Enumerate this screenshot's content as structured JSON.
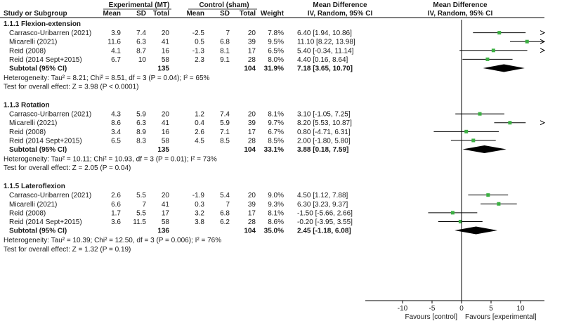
{
  "header": {
    "experimental_group": "Experimental (MT)",
    "control_group": "Control (sham)",
    "md_title": "Mean Difference",
    "md_method": "IV, Random, 95% CI",
    "md_title_right": "Mean Difference",
    "md_method_right": "IV, Random, 95% CI",
    "study_col": "Study or Subgroup",
    "mean": "Mean",
    "sd": "SD",
    "total": "Total",
    "mean2": "Mean",
    "sd2": "SD",
    "total2": "Total",
    "weight": "Weight"
  },
  "chart_data": {
    "type": "forest",
    "xlim": [
      -10,
      10
    ],
    "ticks": [
      -10,
      -5,
      0,
      5,
      10
    ],
    "favours_left": "Favours [control]",
    "favours_right": "Favours [experimental]",
    "marker_color": "#3cb043",
    "diamond_color": "#000000",
    "subgroups": [
      {
        "title": "1.1.1 Flexion-extension",
        "studies": [
          {
            "name": "Carrasco-Uribarren (2021)",
            "exp_mean": "3.9",
            "exp_sd": "7.4",
            "exp_total": "20",
            "ctl_mean": "-2.5",
            "ctl_sd": "7",
            "ctl_total": "20",
            "weight": "7.8%",
            "md_text": "6.40 [1.94, 10.86]",
            "md": 6.4,
            "lo": 1.94,
            "hi": 10.86
          },
          {
            "name": "Micarelli (2021)",
            "exp_mean": "11.6",
            "exp_sd": "6.3",
            "exp_total": "41",
            "ctl_mean": "0.5",
            "ctl_sd": "6.8",
            "ctl_total": "39",
            "weight": "9.5%",
            "md_text": "11.10 [8.22, 13.98]",
            "md": 11.1,
            "lo": 8.22,
            "hi": 13.98
          },
          {
            "name": "Reid (2008)",
            "exp_mean": "4.1",
            "exp_sd": "8.7",
            "exp_total": "16",
            "ctl_mean": "-1.3",
            "ctl_sd": "8.1",
            "ctl_total": "17",
            "weight": "6.5%",
            "md_text": "5.40 [-0.34, 11.14]",
            "md": 5.4,
            "lo": -0.34,
            "hi": 11.14
          },
          {
            "name": "Reid (2014 Sept+2015)",
            "exp_mean": "6.7",
            "exp_sd": "10",
            "exp_total": "58",
            "ctl_mean": "2.3",
            "ctl_sd": "9.1",
            "ctl_total": "28",
            "weight": "8.0%",
            "md_text": "4.40 [0.16, 8.64]",
            "md": 4.4,
            "lo": 0.16,
            "hi": 8.64
          }
        ],
        "subtotal": {
          "label": "Subtotal (95% CI)",
          "exp_total": "135",
          "ctl_total": "104",
          "weight": "31.9%",
          "md_text": "7.18 [3.65, 10.70]",
          "md": 7.18,
          "lo": 3.65,
          "hi": 10.7
        },
        "heterogeneity": "Heterogeneity: Tau² = 8.21; Chi² = 8.51, df = 3 (P = 0.04); I² = 65%",
        "overall": "Test for overall effect: Z = 3.98 (P < 0.0001)"
      },
      {
        "title": "1.1.3 Rotation",
        "studies": [
          {
            "name": "Carrasco-Uribarren (2021)",
            "exp_mean": "4.3",
            "exp_sd": "5.9",
            "exp_total": "20",
            "ctl_mean": "1.2",
            "ctl_sd": "7.4",
            "ctl_total": "20",
            "weight": "8.1%",
            "md_text": "3.10 [-1.05, 7.25]",
            "md": 3.1,
            "lo": -1.05,
            "hi": 7.25
          },
          {
            "name": "Micarelli (2021)",
            "exp_mean": "8.6",
            "exp_sd": "6.3",
            "exp_total": "41",
            "ctl_mean": "0.4",
            "ctl_sd": "5.9",
            "ctl_total": "39",
            "weight": "9.7%",
            "md_text": "8.20 [5.53, 10.87]",
            "md": 8.2,
            "lo": 5.53,
            "hi": 10.87
          },
          {
            "name": "Reid (2008)",
            "exp_mean": "3.4",
            "exp_sd": "8.9",
            "exp_total": "16",
            "ctl_mean": "2.6",
            "ctl_sd": "7.1",
            "ctl_total": "17",
            "weight": "6.7%",
            "md_text": "0.80 [-4.71, 6.31]",
            "md": 0.8,
            "lo": -4.71,
            "hi": 6.31
          },
          {
            "name": "Reid (2014 Sept+2015)",
            "exp_mean": "6.5",
            "exp_sd": "8.3",
            "exp_total": "58",
            "ctl_mean": "4.5",
            "ctl_sd": "8.5",
            "ctl_total": "28",
            "weight": "8.5%",
            "md_text": "2.00 [-1.80, 5.80]",
            "md": 2.0,
            "lo": -1.8,
            "hi": 5.8
          }
        ],
        "subtotal": {
          "label": "Subtotal (95% CI)",
          "exp_total": "135",
          "ctl_total": "104",
          "weight": "33.1%",
          "md_text": "3.88 [0.18, 7.59]",
          "md": 3.88,
          "lo": 0.18,
          "hi": 7.59
        },
        "heterogeneity": "Heterogeneity: Tau² = 10.11; Chi² = 10.93, df = 3 (P = 0.01); I² = 73%",
        "overall": "Test for overall effect: Z = 2.05 (P = 0.04)"
      },
      {
        "title": "1.1.5 Lateroflexion",
        "studies": [
          {
            "name": "Carrasco-Uribarren (2021)",
            "exp_mean": "2.6",
            "exp_sd": "5.5",
            "exp_total": "20",
            "ctl_mean": "-1.9",
            "ctl_sd": "5.4",
            "ctl_total": "20",
            "weight": "9.0%",
            "md_text": "4.50 [1.12, 7.88]",
            "md": 4.5,
            "lo": 1.12,
            "hi": 7.88
          },
          {
            "name": "Micarelli (2021)",
            "exp_mean": "6.6",
            "exp_sd": "7",
            "exp_total": "41",
            "ctl_mean": "0.3",
            "ctl_sd": "7",
            "ctl_total": "39",
            "weight": "9.3%",
            "md_text": "6.30 [3.23, 9.37]",
            "md": 6.3,
            "lo": 3.23,
            "hi": 9.37
          },
          {
            "name": "Reid (2008)",
            "exp_mean": "1.7",
            "exp_sd": "5.5",
            "exp_total": "17",
            "ctl_mean": "3.2",
            "ctl_sd": "6.8",
            "ctl_total": "17",
            "weight": "8.1%",
            "md_text": "-1.50 [-5.66, 2.66]",
            "md": -1.5,
            "lo": -5.66,
            "hi": 2.66
          },
          {
            "name": "Reid (2014 Sept+2015)",
            "exp_mean": "3.6",
            "exp_sd": "11.5",
            "exp_total": "58",
            "ctl_mean": "3.8",
            "ctl_sd": "6.2",
            "ctl_total": "28",
            "weight": "8.6%",
            "md_text": "-0.20 [-3.95, 3.55]",
            "md": -0.2,
            "lo": -3.95,
            "hi": 3.55
          }
        ],
        "subtotal": {
          "label": "Subtotal (95% CI)",
          "exp_total": "136",
          "ctl_total": "104",
          "weight": "35.0%",
          "md_text": "2.45 [-1.18, 6.08]",
          "md": 2.45,
          "lo": -1.18,
          "hi": 6.08
        },
        "heterogeneity": "Heterogeneity: Tau² = 10.39; Chi² = 12.50, df = 3 (P = 0.006); I² = 76%",
        "overall": "Test for overall effect: Z = 1.32 (P = 0.19)"
      }
    ]
  }
}
